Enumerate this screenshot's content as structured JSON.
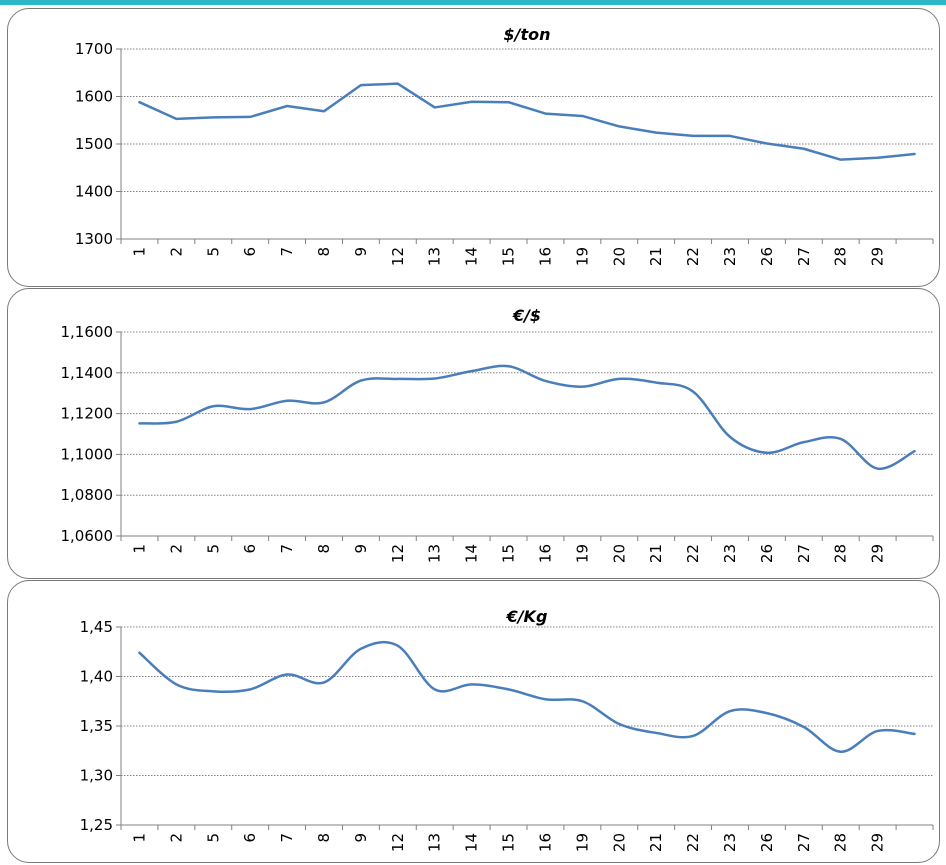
{
  "colors": {
    "line": "#4a7ebb",
    "grid": "#808080",
    "top_bar": "#2bb7c3"
  },
  "chart_data": [
    {
      "type": "line",
      "title": "$/ton",
      "categories": [
        "1",
        "2",
        "5",
        "6",
        "7",
        "8",
        "9",
        "12",
        "13",
        "14",
        "15",
        "16",
        "19",
        "20",
        "21",
        "22",
        "23",
        "26",
        "27",
        "28",
        "29",
        ""
      ],
      "values": [
        1588,
        1553,
        1556,
        1557,
        1580,
        1569,
        1624,
        1627,
        1577,
        1589,
        1588,
        1564,
        1559,
        1537,
        1524,
        1517,
        1517,
        1501,
        1490,
        1467,
        1471,
        1479
      ],
      "ylim": [
        1300,
        1700
      ],
      "yticks": [
        "1300",
        "1400",
        "1500",
        "1600",
        "1700"
      ],
      "grid": true,
      "smooth": false
    },
    {
      "type": "line",
      "title": "€/$",
      "categories": [
        "1",
        "2",
        "5",
        "6",
        "7",
        "8",
        "9",
        "12",
        "13",
        "14",
        "15",
        "16",
        "19",
        "20",
        "21",
        "22",
        "23",
        "26",
        "27",
        "28",
        "29",
        ""
      ],
      "values": [
        1.1152,
        1.116,
        1.1236,
        1.1222,
        1.1263,
        1.1255,
        1.1362,
        1.137,
        1.1372,
        1.1408,
        1.1432,
        1.136,
        1.1332,
        1.137,
        1.1352,
        1.1308,
        1.1086,
        1.1008,
        1.106,
        1.1076,
        1.093,
        1.1016
      ],
      "ylim": [
        1.06,
        1.16
      ],
      "yticks": [
        "1,0600",
        "1,0800",
        "1,1000",
        "1,1200",
        "1,1400",
        "1,1600"
      ],
      "grid": true,
      "smooth": true
    },
    {
      "type": "line",
      "title": "€/Kg",
      "categories": [
        "1",
        "2",
        "5",
        "6",
        "7",
        "8",
        "9",
        "12",
        "13",
        "14",
        "15",
        "16",
        "19",
        "20",
        "21",
        "22",
        "23",
        "26",
        "27",
        "28",
        "29",
        ""
      ],
      "values": [
        1.424,
        1.392,
        1.385,
        1.387,
        1.402,
        1.394,
        1.428,
        1.431,
        1.387,
        1.392,
        1.387,
        1.377,
        1.375,
        1.352,
        1.343,
        1.34,
        1.365,
        1.363,
        1.349,
        1.324,
        1.345,
        1.342
      ],
      "ylim": [
        1.25,
        1.45
      ],
      "yticks": [
        "1,25",
        "1,30",
        "1,35",
        "1,40",
        "1,45"
      ],
      "grid": true,
      "smooth": true
    }
  ]
}
